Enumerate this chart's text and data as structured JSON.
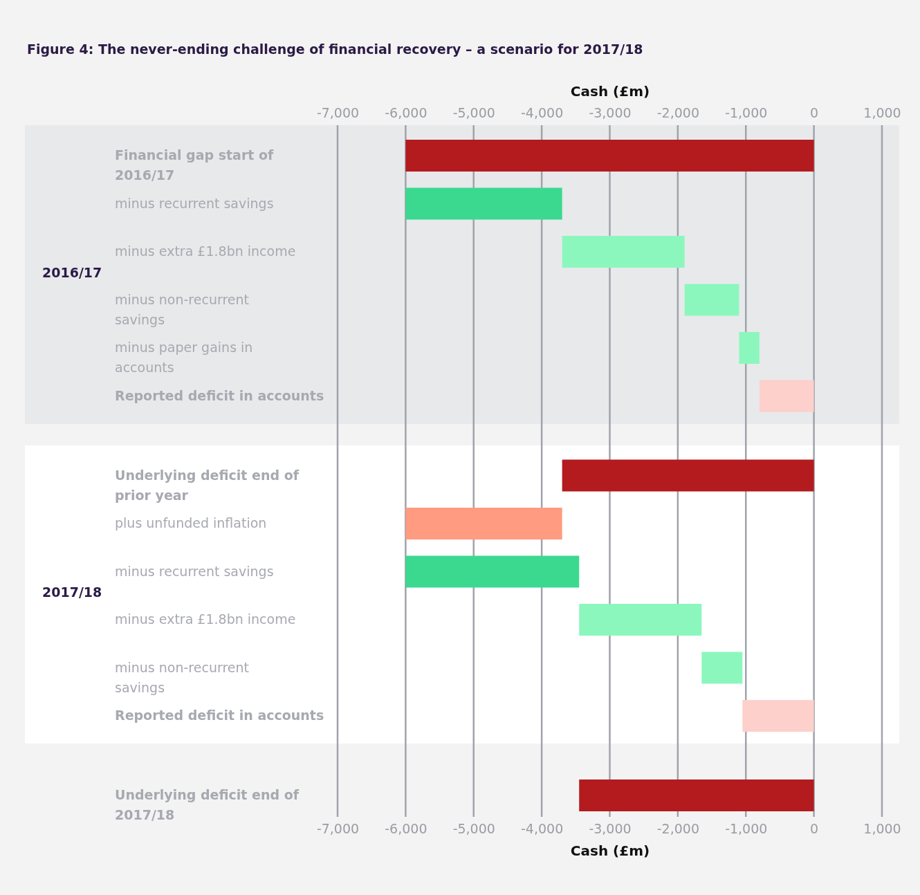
{
  "chart_data": {
    "type": "bar",
    "orientation": "horizontal",
    "title": "Figure 4: The never-ending challenge of financial recovery – a scenario for 2017/18",
    "xlabel": "Cash (£m)",
    "x2label": "Cash (£m)",
    "categories": [
      "Financial gap start of 2016/17",
      "minus recurrent savings",
      "minus extra £1.8bn income",
      "minus non-recurrent savings",
      "minus paper gains in accounts",
      "Reported deficit in accounts",
      "Underlying deficit end of prior year",
      "plus unfunded inflation",
      "minus recurrent savings",
      "minus extra £1.8bn income",
      "minus non-recurrent savings",
      "Reported deficit in accounts",
      "Underlying deficit end of 2017/18"
    ],
    "base": [
      0,
      -6000,
      -3700,
      -1900,
      -1100,
      0,
      0,
      -3700,
      -6000,
      -3450,
      -1650,
      0,
      0
    ],
    "values": [
      -6000,
      2300,
      1800,
      800,
      300,
      -800,
      -3700,
      -2300,
      2550,
      1800,
      600,
      -1050,
      -3450
    ],
    "colors": [
      "#b31b1e",
      "#3ad98f",
      "#8cf7bd",
      "#8cf7bd",
      "#8cf7bd",
      "#fdd0cb",
      "#b31b1e",
      "#fe9b80",
      "#3ad98f",
      "#8cf7bd",
      "#8cf7bd",
      "#fdd0cb",
      "#b31b1e"
    ],
    "xlim": [
      -7000,
      1000
    ],
    "xticks": [
      {
        "value": -7000,
        "label": "-7,000"
      },
      {
        "value": -6000,
        "label": "-6,000"
      },
      {
        "value": -5000,
        "label": "-5,000"
      },
      {
        "value": -4000,
        "label": "-4,000"
      },
      {
        "value": -3000,
        "label": "-3,000"
      },
      {
        "value": -2000,
        "label": "-2,000"
      },
      {
        "value": -1000,
        "label": "-1,000"
      },
      0,
      {
        "value": 1000,
        "label": "1,000"
      }
    ],
    "x2lim": [
      -7000,
      1000
    ],
    "x2ticks": [
      {
        "value": -7000,
        "label": "-7,000"
      },
      {
        "value": -6000,
        "label": "-6,000"
      },
      {
        "value": -5000,
        "label": "-5,000"
      },
      {
        "value": -4000,
        "label": "-4,000"
      },
      {
        "value": -3000,
        "label": "-3,000"
      },
      {
        "value": -2000,
        "label": "-2,000"
      },
      {
        "value": -1000,
        "label": "-1,000"
      },
      0,
      {
        "value": 1000,
        "label": "1,000"
      }
    ],
    "annotations": [
      "2016/17",
      "2017/18"
    ],
    "grid": "x"
  }
}
